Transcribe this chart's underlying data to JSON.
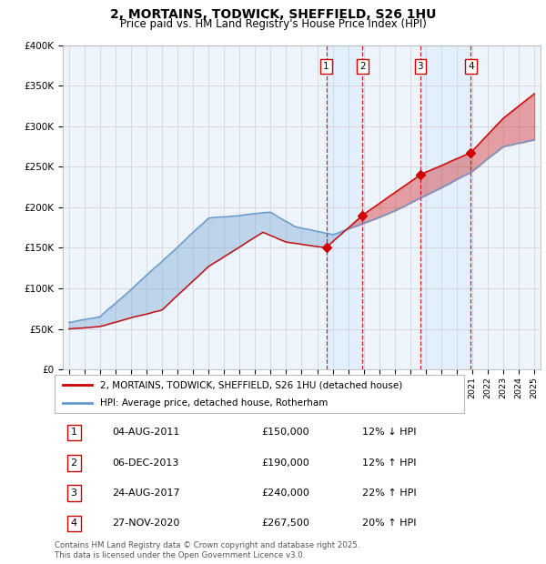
{
  "title": "2, MORTAINS, TODWICK, SHEFFIELD, S26 1HU",
  "subtitle": "Price paid vs. HM Land Registry's House Price Index (HPI)",
  "legend_line1": "2, MORTAINS, TODWICK, SHEFFIELD, S26 1HU (detached house)",
  "legend_line2": "HPI: Average price, detached house, Rotherham",
  "footer": "Contains HM Land Registry data © Crown copyright and database right 2025.\nThis data is licensed under the Open Government Licence v3.0.",
  "transactions": [
    {
      "num": 1,
      "date": "04-AUG-2011",
      "price": "£150,000",
      "pct": "12%",
      "dir": "↓",
      "vs": "HPI"
    },
    {
      "num": 2,
      "date": "06-DEC-2013",
      "price": "£190,000",
      "pct": "12%",
      "dir": "↑",
      "vs": "HPI"
    },
    {
      "num": 3,
      "date": "24-AUG-2017",
      "price": "£240,000",
      "pct": "22%",
      "dir": "↑",
      "vs": "HPI"
    },
    {
      "num": 4,
      "date": "27-NOV-2020",
      "price": "£267,500",
      "pct": "20%",
      "dir": "↑",
      "vs": "HPI"
    }
  ],
  "transaction_years": [
    2011.59,
    2013.92,
    2017.65,
    2020.91
  ],
  "transaction_prices": [
    150000,
    190000,
    240000,
    267500
  ],
  "hpi_color": "#6699cc",
  "price_color": "#cc0000",
  "vline_color": "#cc0000",
  "shade_color": "#ddeeff",
  "plot_bg": "#ffffff",
  "ylim": [
    0,
    400000
  ],
  "xlim_start": 1994.6,
  "xlim_end": 2025.4
}
